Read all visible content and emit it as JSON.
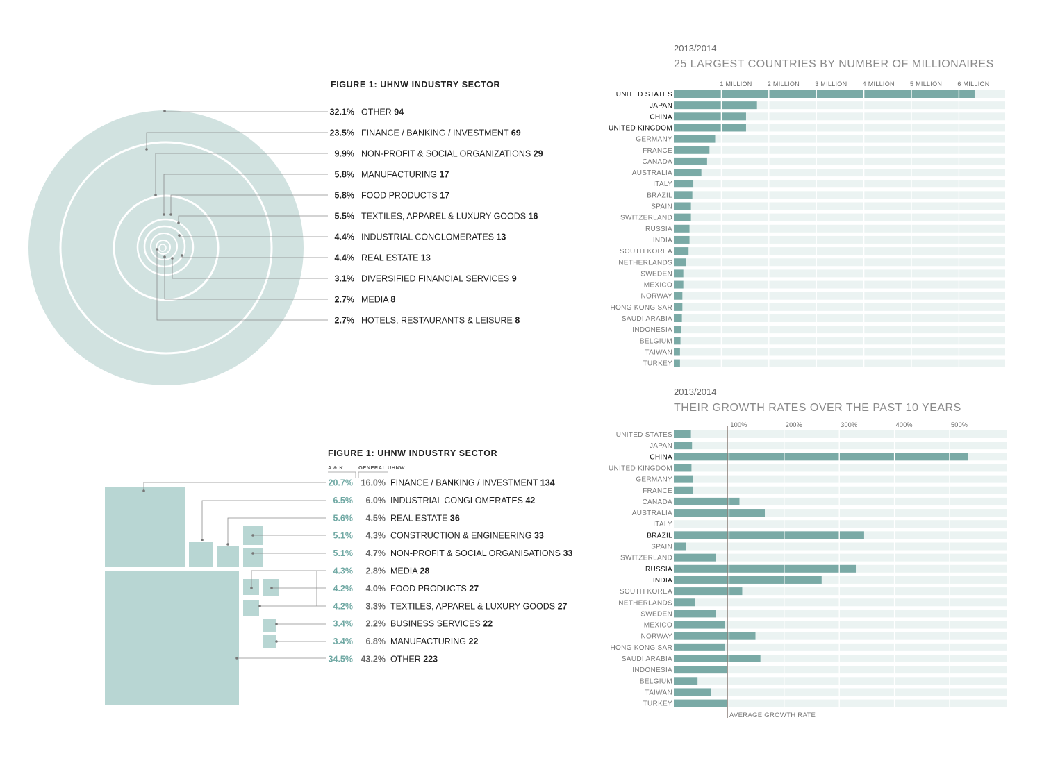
{
  "colors": {
    "accent": "#7aaaa6",
    "circle_fill": "#d1e2e0",
    "treemap_fill": "#b8d6d3",
    "track": "#ebf3f2",
    "text_dark": "#222222",
    "text_gray": "#777777",
    "teal_text": "#6fa8a3"
  },
  "chart_data": [
    {
      "type": "other",
      "chart_kind": "concentric-circles",
      "title": "FIGURE 1: UHNW INDUSTRY SECTOR",
      "items": [
        {
          "pct": "32.1%",
          "label": "OTHER",
          "count": "94",
          "value": 32.1
        },
        {
          "pct": "23.5%",
          "label": "FINANCE / BANKING / INVESTMENT",
          "count": "69",
          "value": 23.5
        },
        {
          "pct": "9.9%",
          "label": "NON-PROFIT & SOCIAL ORGANIZATIONS",
          "count": "29",
          "value": 9.9
        },
        {
          "pct": "5.8%",
          "label": "MANUFACTURING",
          "count": "17",
          "value": 5.8
        },
        {
          "pct": "5.8%",
          "label": "FOOD PRODUCTS",
          "count": "17",
          "value": 5.8
        },
        {
          "pct": "5.5%",
          "label": "TEXTILES, APPAREL & LUXURY GOODS",
          "count": "16",
          "value": 5.5
        },
        {
          "pct": "4.4%",
          "label": "INDUSTRIAL CONGLOMERATES",
          "count": "13",
          "value": 4.4
        },
        {
          "pct": "4.4%",
          "label": "REAL ESTATE",
          "count": "13",
          "value": 4.4
        },
        {
          "pct": "3.1%",
          "label": "DIVERSIFIED FINANCIAL SERVICES",
          "count": "9",
          "value": 3.1
        },
        {
          "pct": "2.7%",
          "label": "MEDIA",
          "count": "8",
          "value": 2.7
        },
        {
          "pct": "2.7%",
          "label": "HOTELS, RESTAURANTS & LEISURE",
          "count": "8",
          "value": 2.7
        }
      ]
    },
    {
      "type": "other",
      "chart_kind": "treemap",
      "title": "FIGURE 1: UHNW INDUSTRY SECTOR",
      "col_headers": [
        "A & K",
        "GENERAL UHNW"
      ],
      "items": [
        {
          "ak": "20.7%",
          "gen": "16.0%",
          "label": "FINANCE / BANKING / INVESTMENT",
          "count": "134",
          "value": 20.7
        },
        {
          "ak": "6.5%",
          "gen": "6.0%",
          "label": "INDUSTRIAL CONGLOMERATES",
          "count": "42",
          "value": 6.5
        },
        {
          "ak": "5.6%",
          "gen": "4.5%",
          "label": "REAL ESTATE",
          "count": "36",
          "value": 5.6
        },
        {
          "ak": "5.1%",
          "gen": "4.3%",
          "label": "CONSTRUCTION & ENGINEERING",
          "count": "33",
          "value": 5.1
        },
        {
          "ak": "5.1%",
          "gen": "4.7%",
          "label": "NON-PROFIT & SOCIAL ORGANISATIONS",
          "count": "33",
          "value": 5.1
        },
        {
          "ak": "4.3%",
          "gen": "2.8%",
          "label": "MEDIA",
          "count": "28",
          "value": 4.3
        },
        {
          "ak": "4.2%",
          "gen": "4.0%",
          "label": "FOOD PRODUCTS",
          "count": "27",
          "value": 4.2
        },
        {
          "ak": "4.2%",
          "gen": "3.3%",
          "label": "TEXTILES, APPAREL & LUXURY GOODS",
          "count": "27",
          "value": 4.2
        },
        {
          "ak": "3.4%",
          "gen": "2.2%",
          "label": "BUSINESS SERVICES",
          "count": "22",
          "value": 3.4
        },
        {
          "ak": "3.4%",
          "gen": "6.8%",
          "label": "MANUFACTURING",
          "count": "22",
          "value": 3.4
        },
        {
          "ak": "34.5%",
          "gen": "43.2%",
          "label": "OTHER",
          "count": "223",
          "value": 34.5
        }
      ]
    },
    {
      "type": "bar",
      "orientation": "horizontal",
      "subtitle": "2013/2014",
      "title": "25 LARGEST COUNTRIES BY NUMBER OF MILLIONAIRES",
      "xlim": [
        0,
        7
      ],
      "tick_values": [
        1,
        2,
        3,
        4,
        5,
        6
      ],
      "tick_labels": [
        "1 MILLION",
        "2 MILLION",
        "3 MILLION",
        "4 MILLION",
        "5 MILLION",
        "6 MILLION"
      ],
      "unit": "million",
      "categories": [
        "UNITED STATES",
        "JAPAN",
        "CHINA",
        "UNITED KINGDOM",
        "GERMANY",
        "FRANCE",
        "CANADA",
        "AUSTRALIA",
        "ITALY",
        "BRAZIL",
        "SPAIN",
        "SWITZERLAND",
        "RUSSIA",
        "INDIA",
        "SOUTH KOREA",
        "NETHERLANDS",
        "SWEDEN",
        "MEXICO",
        "NORWAY",
        "HONG KONG SAR",
        "SAUDI ARABIA",
        "INDONESIA",
        "BELGIUM",
        "TAIWAN",
        "TURKEY"
      ],
      "values": [
        6.33,
        1.75,
        1.52,
        1.52,
        0.87,
        0.75,
        0.7,
        0.58,
        0.41,
        0.39,
        0.36,
        0.36,
        0.33,
        0.33,
        0.31,
        0.25,
        0.2,
        0.2,
        0.18,
        0.18,
        0.17,
        0.16,
        0.14,
        0.13,
        0.13
      ],
      "highlight": [
        "UNITED STATES",
        "JAPAN",
        "CHINA",
        "UNITED KINGDOM"
      ]
    },
    {
      "type": "bar",
      "orientation": "horizontal",
      "subtitle": "2013/2014",
      "title": "THEIR GROWTH RATES OVER THE PAST 10 YEARS",
      "xlim": [
        0,
        600
      ],
      "tick_values": [
        100,
        200,
        300,
        400,
        500
      ],
      "tick_labels": [
        "100%",
        "200%",
        "300%",
        "400%",
        "500%"
      ],
      "unit": "%",
      "reference_line": {
        "value": 97,
        "label": "AVERAGE GROWTH RATE"
      },
      "categories": [
        "UNITED STATES",
        "JAPAN",
        "CHINA",
        "UNITED KINGDOM",
        "GERMANY",
        "FRANCE",
        "CANADA",
        "AUSTRALIA",
        "ITALY",
        "BRAZIL",
        "SPAIN",
        "SWITZERLAND",
        "RUSSIA",
        "INDIA",
        "SOUTH KOREA",
        "NETHERLANDS",
        "SWEDEN",
        "MEXICO",
        "NORWAY",
        "HONG KONG SAR",
        "SAUDI ARABIA",
        "INDONESIA",
        "BELGIUM",
        "TAIWAN",
        "TURKEY"
      ],
      "values": [
        31,
        33,
        533,
        32,
        35,
        35,
        119,
        165,
        0,
        345,
        22,
        76,
        330,
        268,
        124,
        38,
        76,
        92,
        148,
        93,
        157,
        97,
        43,
        67,
        97
      ],
      "highlight": [
        "CHINA",
        "BRAZIL",
        "RUSSIA",
        "INDIA"
      ]
    }
  ]
}
